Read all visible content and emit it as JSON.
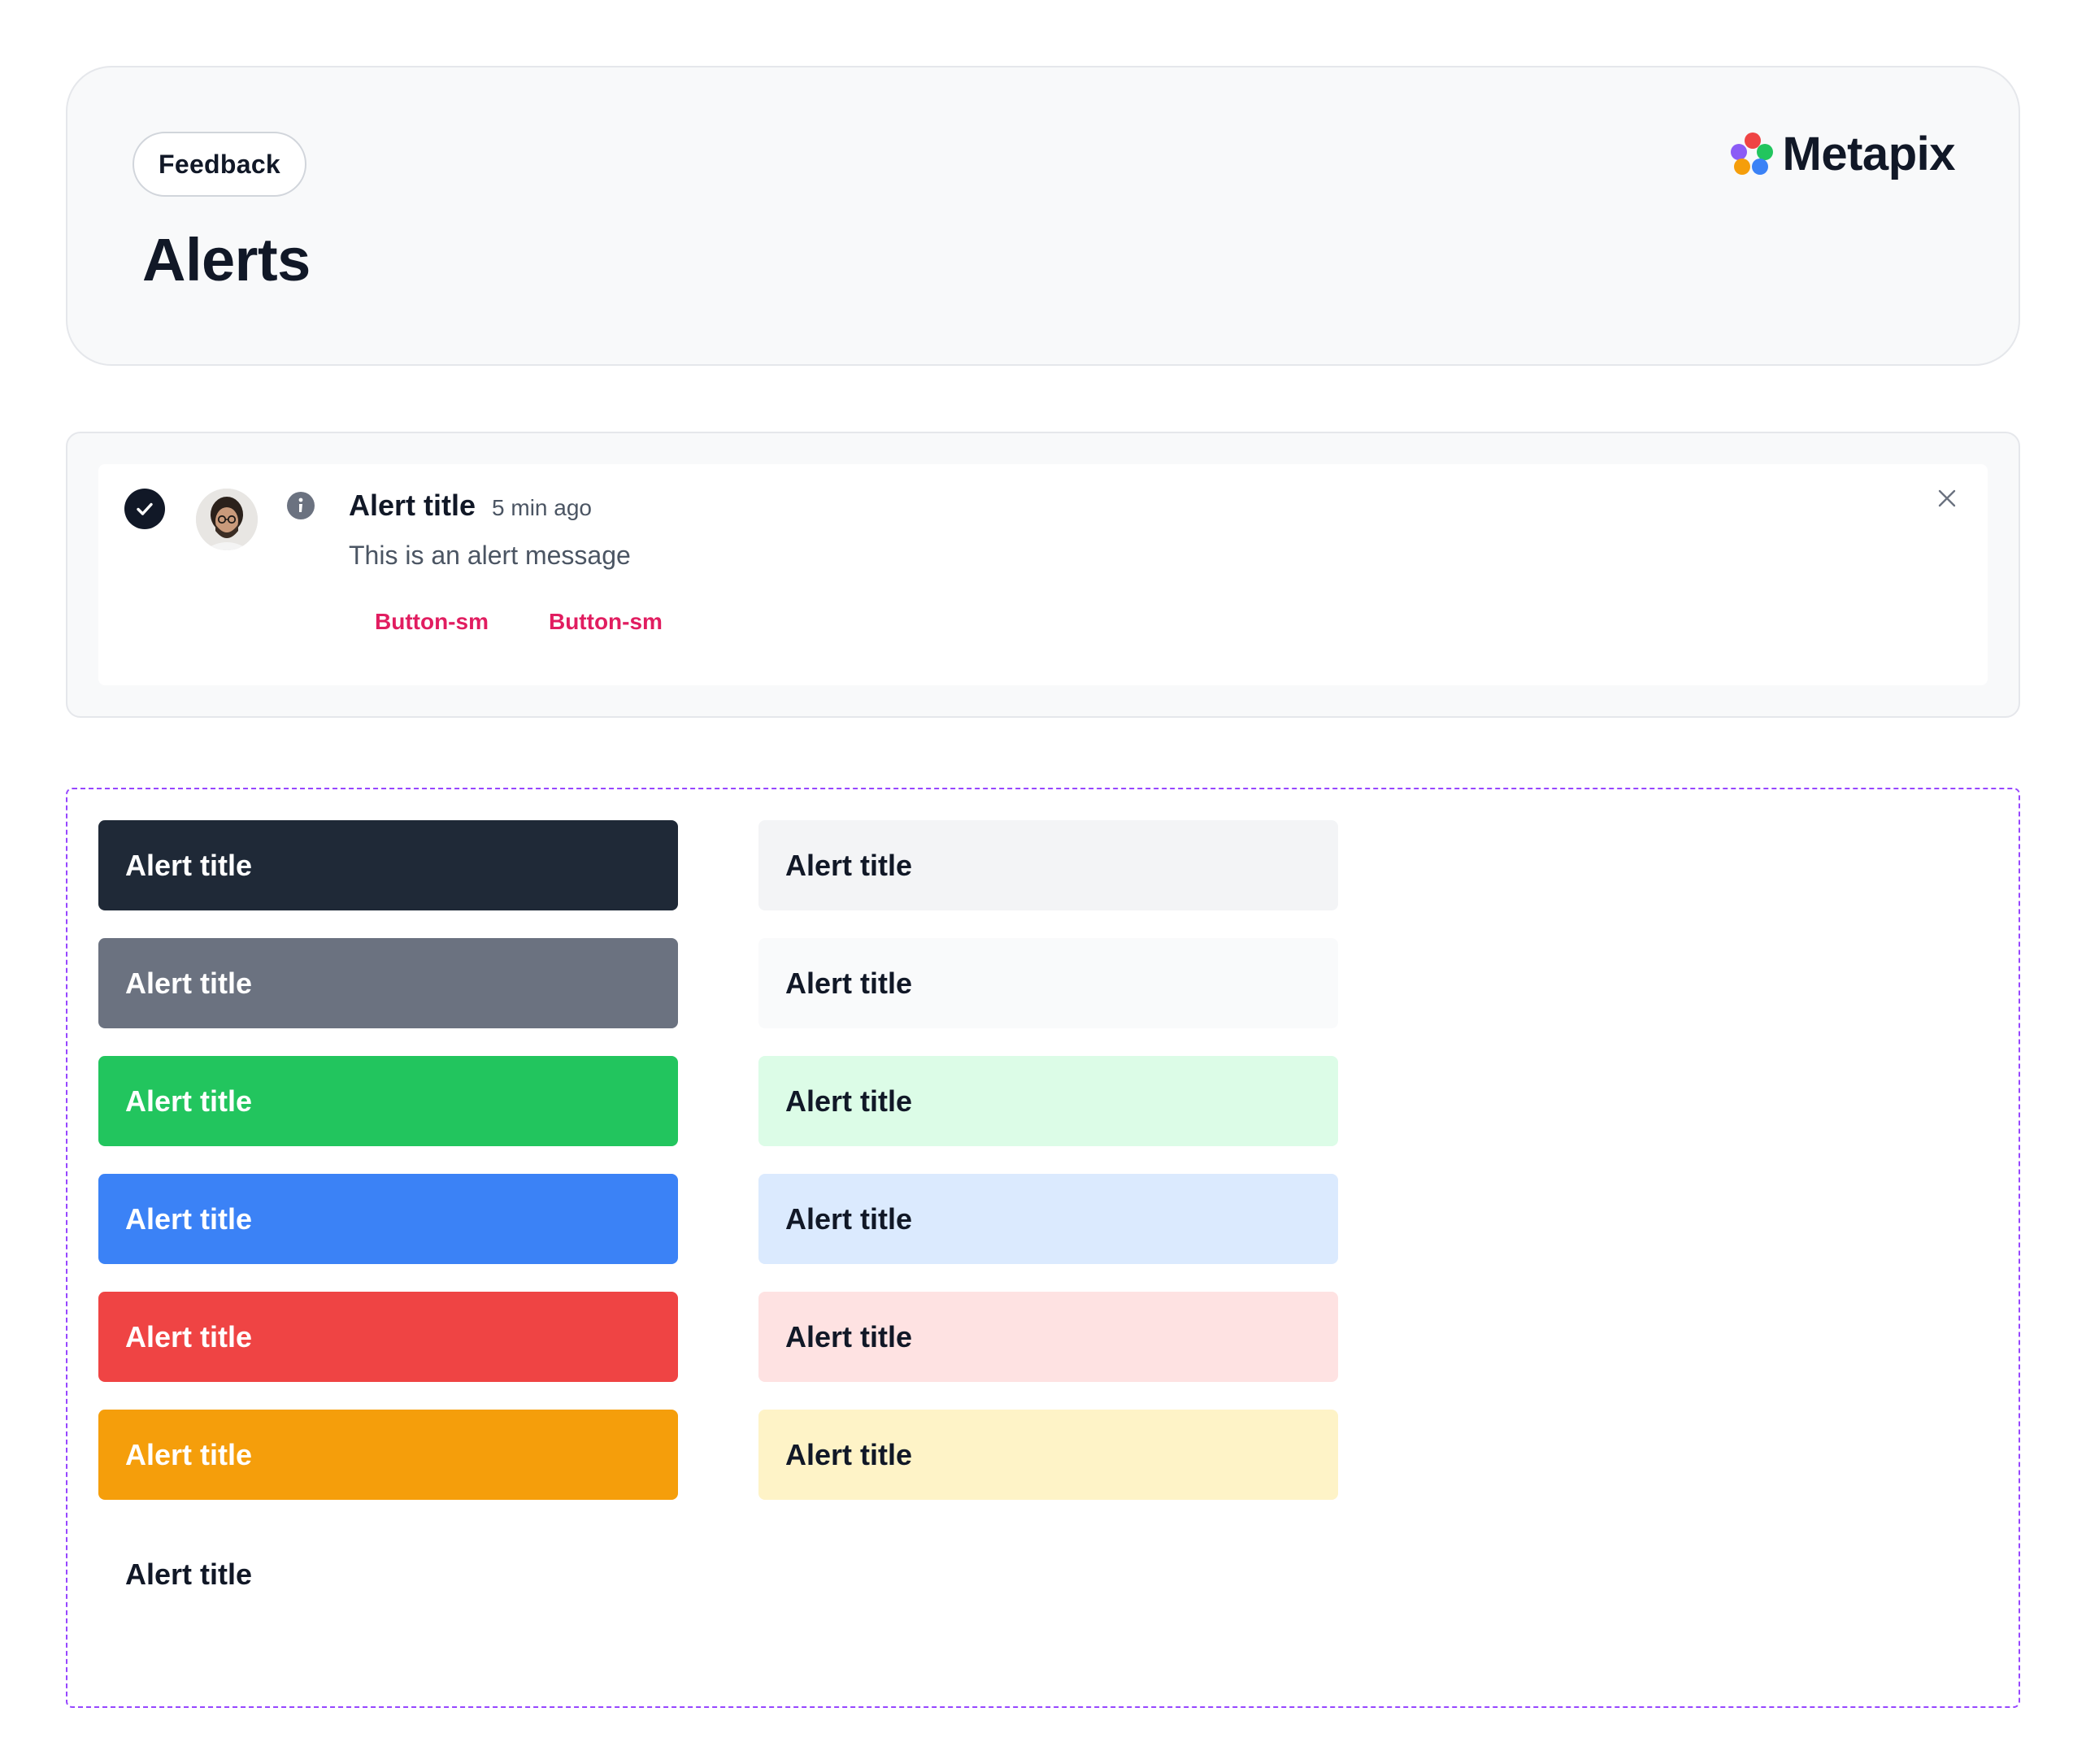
{
  "header": {
    "feedback_label": "Feedback",
    "title": "Alerts",
    "brand_name": "Metapix",
    "brand_colors": [
      "#ef4444",
      "#8b5cf6",
      "#22c55e",
      "#f59e0b",
      "#3b82f6"
    ]
  },
  "notification": {
    "icons": [
      "check-circle-icon",
      "avatar",
      "info-icon",
      "close-icon"
    ],
    "title": "Alert title",
    "time": "5 min ago",
    "message": "This is an alert message",
    "actions": [
      "Button-sm",
      "Button-sm"
    ],
    "accent": "#e11d60"
  },
  "variants": {
    "solid": [
      {
        "label": "Alert title",
        "bg": "#1f2937"
      },
      {
        "label": "Alert title",
        "bg": "#6b7280"
      },
      {
        "label": "Alert title",
        "bg": "#22c55e"
      },
      {
        "label": "Alert title",
        "bg": "#3b82f6"
      },
      {
        "label": "Alert title",
        "bg": "#ef4444"
      },
      {
        "label": "Alert title",
        "bg": "#f59e0b"
      }
    ],
    "soft": [
      {
        "label": "Alert title",
        "bg": "#f3f4f6"
      },
      {
        "label": "Alert title",
        "bg": "#f9fafb"
      },
      {
        "label": "Alert title",
        "bg": "#dcfce7"
      },
      {
        "label": "Alert title",
        "bg": "#dbeafe"
      },
      {
        "label": "Alert title",
        "bg": "#fee2e2"
      },
      {
        "label": "Alert title",
        "bg": "#fef3c7"
      }
    ],
    "plain": {
      "label": "Alert title"
    }
  }
}
